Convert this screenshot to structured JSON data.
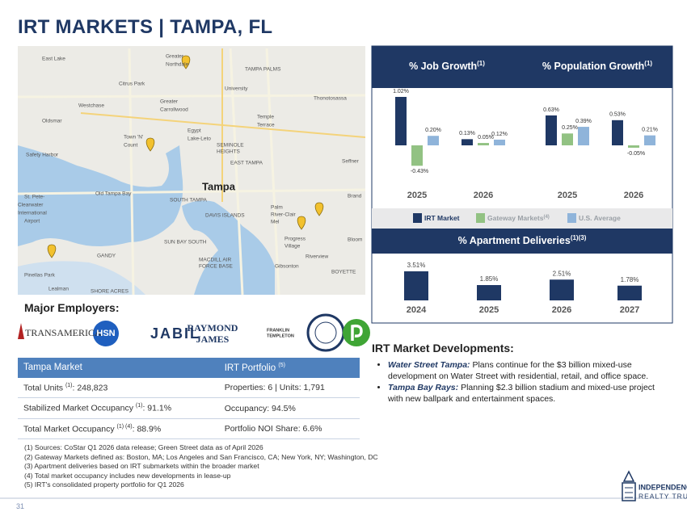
{
  "header": {
    "title": "IRT MARKETS | TAMPA, FL"
  },
  "map": {
    "labels": [
      "East Lake",
      "Greater",
      "Northdale",
      "TAMPA PALMS",
      "Citrus Park",
      "University",
      "Thonotosassa",
      "Westchase",
      "Greater",
      "Carrollwood",
      "Oldsmar",
      "Temple",
      "Terrace",
      "Town 'N'",
      "Count",
      "Egypt",
      "Lake-Leto",
      "SEMINOLE",
      "HEIGHTS",
      "Safety Harbor",
      "EAST TAMPA",
      "Seffner",
      "Tampa",
      "Old Tampa Bay",
      "Brand",
      "St. Pete-",
      "Clearwater",
      "International",
      "Airport",
      "SOUTH TAMPA",
      "DAVIS ISLANDS",
      "Palm",
      "River-Clair",
      "Mel",
      "SUN BAY SOUTH",
      "Progress",
      "Village",
      "Bloom",
      "Riverview",
      "MACDILL AIR",
      "FORCE BASE",
      "Gibsonton",
      "BOYETTE",
      "GANDY",
      "Pinellas Park",
      "Lealman",
      "SHORE ACRES"
    ]
  },
  "employers": {
    "title": "Major Employers:",
    "logos": [
      "TRANSAMERICA",
      "HSN",
      "JABIL",
      "RAYMOND",
      "JAMES",
      "FRANKLIN",
      "TEMPLETON"
    ]
  },
  "chart_data": [
    {
      "type": "grouped_bar",
      "title": "% Job Growth",
      "title_note": "(1)",
      "categories": [
        "2025",
        "2026"
      ],
      "series": [
        {
          "name": "IRT Market",
          "color": "#1f3864",
          "values": [
            1.02,
            0.13
          ],
          "value_labels": [
            "1.02%",
            "0.13%"
          ]
        },
        {
          "name": "Gateway Markets",
          "note": "(4)",
          "color": "#92c283",
          "values": [
            -0.43,
            0.05
          ],
          "value_labels": [
            "-0.43%",
            "0.05%"
          ]
        },
        {
          "name": "U.S. Average",
          "color": "#8fb4da",
          "values": [
            0.2,
            0.12
          ],
          "value_labels": [
            "0.20%",
            "0.12%"
          ]
        }
      ]
    },
    {
      "type": "grouped_bar",
      "title": "% Population Growth",
      "title_note": "(1)",
      "categories": [
        "2025",
        "2026"
      ],
      "series": [
        {
          "color": "#1f3864",
          "values": [
            0.63,
            0.53
          ],
          "value_labels": [
            "0.63%",
            "0.53%"
          ]
        },
        {
          "color": "#92c283",
          "values": [
            0.25,
            -0.05
          ],
          "value_labels": [
            "0.25%",
            "-0.05%"
          ]
        },
        {
          "color": "#8fb4da",
          "values": [
            0.39,
            0.21
          ],
          "value_labels": [
            "0.39%",
            "0.21%"
          ]
        }
      ]
    },
    {
      "type": "bar",
      "title": "% Apartment Deliveries",
      "title_note": "(1)(3)",
      "categories": [
        "2024",
        "2025",
        "2026",
        "2027"
      ],
      "color": "#1f3864",
      "values": [
        3.51,
        1.85,
        2.51,
        1.78
      ],
      "value_labels": [
        "3.51%",
        "1.85%",
        "2.51%",
        "1.78%"
      ]
    }
  ],
  "table": {
    "headers": [
      {
        "text": "Tampa Market"
      },
      {
        "text": "IRT Portfolio ",
        "sup": "(5)"
      }
    ],
    "rows": [
      [
        {
          "text": "Total Units ",
          "sup": "(1)",
          "rest": ": 248,823"
        },
        {
          "text": "Properties: 6 | Units: 1,791"
        }
      ],
      [
        {
          "text": "Stabilized Market Occupancy ",
          "sup": "(1)",
          "rest": ": 91.1%"
        },
        {
          "text": "Occupancy: 94.5%"
        }
      ],
      [
        {
          "text": "Total Market Occupancy ",
          "sup": "(1) (4)",
          "rest": ": 88.9%"
        },
        {
          "text": "Portfolio NOI Share: 6.6%"
        }
      ]
    ]
  },
  "developments": {
    "title": "IRT Market Developments:",
    "items": [
      {
        "lead": "Water Street Tampa:",
        "text": " Plans continue for the $3 billion mixed-use development on Water Street with residential, retail, and office space."
      },
      {
        "lead": "Tampa Bay Rays:",
        "text": " Planning $2.3 billion stadium and mixed-use project with new ballpark and entertainment spaces."
      }
    ]
  },
  "footnotes": [
    "(1)  Sources: CoStar Q1 2026 data release; Green Street data as of April 2026",
    "(2)  Gateway Markets defined as: Boston, MA; Los Angeles and San Francisco, CA; New York, NY; Washington, DC",
    "(3)  Apartment deliveries based on IRT submarkets within the broader market",
    "(4)  Total market occupancy includes new developments in lease-up",
    "(5)  IRT's consolidated property portfolio for Q1 2026"
  ],
  "footer": {
    "page": "31",
    "logo": [
      "INDEPENDENCE",
      "REALTY TRUST"
    ]
  }
}
